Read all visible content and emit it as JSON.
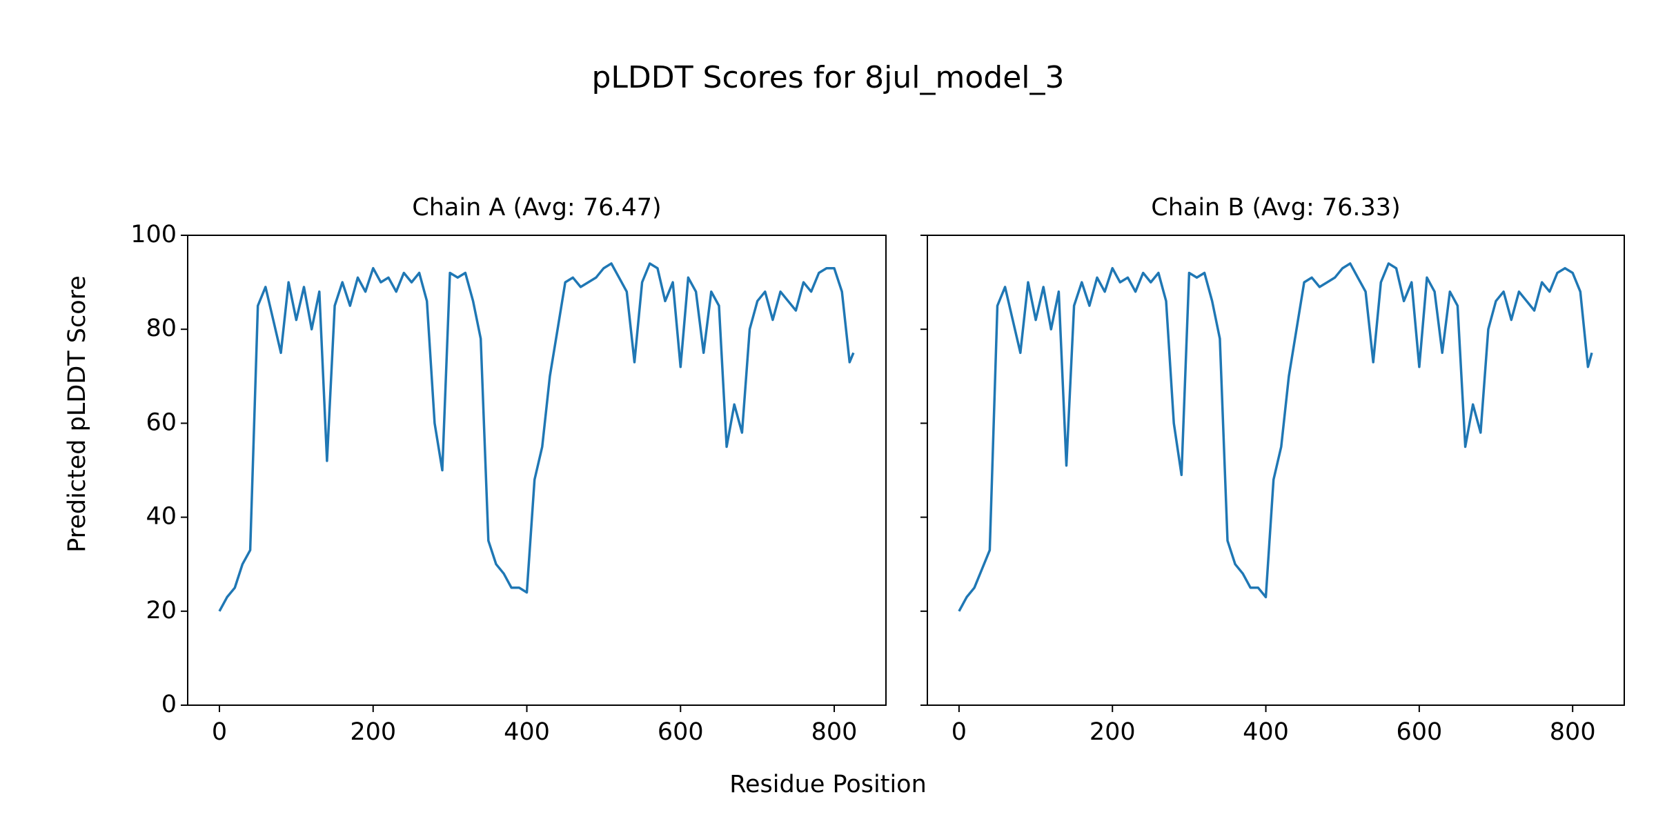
{
  "figure": {
    "title": "pLDDT Scores for 8jul_model_3",
    "x_label": "Residue Position",
    "y_label": "Predicted pLDDT Score"
  },
  "chart_data": [
    {
      "type": "line",
      "title": "Chain A (Avg: 76.47)",
      "color": "#1f77b4",
      "x": [
        0,
        10,
        20,
        30,
        40,
        50,
        60,
        70,
        80,
        90,
        100,
        110,
        120,
        130,
        140,
        150,
        160,
        170,
        180,
        190,
        200,
        210,
        220,
        230,
        240,
        250,
        260,
        270,
        280,
        290,
        300,
        310,
        320,
        330,
        340,
        350,
        360,
        370,
        380,
        390,
        400,
        410,
        420,
        430,
        440,
        450,
        460,
        470,
        480,
        490,
        500,
        510,
        520,
        530,
        540,
        550,
        560,
        570,
        580,
        590,
        600,
        610,
        620,
        630,
        640,
        650,
        660,
        670,
        680,
        690,
        700,
        710,
        720,
        730,
        740,
        750,
        760,
        770,
        780,
        790,
        800,
        810,
        820,
        825
      ],
      "values": [
        20,
        23,
        25,
        30,
        33,
        85,
        89,
        82,
        75,
        90,
        82,
        89,
        80,
        88,
        52,
        85,
        90,
        85,
        91,
        88,
        93,
        90,
        91,
        88,
        92,
        90,
        92,
        86,
        60,
        50,
        92,
        91,
        92,
        86,
        78,
        35,
        30,
        28,
        25,
        25,
        24,
        48,
        55,
        70,
        80,
        90,
        91,
        89,
        90,
        91,
        93,
        94,
        91,
        88,
        73,
        90,
        94,
        93,
        86,
        90,
        72,
        91,
        88,
        75,
        88,
        85,
        55,
        64,
        58,
        80,
        86,
        88,
        82,
        88,
        86,
        84,
        90,
        88,
        92,
        93,
        93,
        88,
        73,
        75
      ],
      "xlim": [
        -41.3,
        867.3
      ],
      "ylim": [
        0,
        100
      ],
      "xticks": [
        0,
        200,
        400,
        600,
        800
      ],
      "yticks": [
        0,
        20,
        40,
        60,
        80,
        100
      ],
      "show_ytick_labels": true
    },
    {
      "type": "line",
      "title": "Chain B (Avg: 76.33)",
      "color": "#1f77b4",
      "x": [
        0,
        10,
        20,
        30,
        40,
        50,
        60,
        70,
        80,
        90,
        100,
        110,
        120,
        130,
        140,
        150,
        160,
        170,
        180,
        190,
        200,
        210,
        220,
        230,
        240,
        250,
        260,
        270,
        280,
        290,
        300,
        310,
        320,
        330,
        340,
        350,
        360,
        370,
        380,
        390,
        400,
        410,
        420,
        430,
        440,
        450,
        460,
        470,
        480,
        490,
        500,
        510,
        520,
        530,
        540,
        550,
        560,
        570,
        580,
        590,
        600,
        610,
        620,
        630,
        640,
        650,
        660,
        670,
        680,
        690,
        700,
        710,
        720,
        730,
        740,
        750,
        760,
        770,
        780,
        790,
        800,
        810,
        820,
        825
      ],
      "values": [
        20,
        23,
        25,
        29,
        33,
        85,
        89,
        82,
        75,
        90,
        82,
        89,
        80,
        88,
        51,
        85,
        90,
        85,
        91,
        88,
        93,
        90,
        91,
        88,
        92,
        90,
        92,
        86,
        60,
        49,
        92,
        91,
        92,
        86,
        78,
        35,
        30,
        28,
        25,
        25,
        23,
        48,
        55,
        70,
        80,
        90,
        91,
        89,
        90,
        91,
        93,
        94,
        91,
        88,
        73,
        90,
        94,
        93,
        86,
        90,
        72,
        91,
        88,
        75,
        88,
        85,
        55,
        64,
        58,
        80,
        86,
        88,
        82,
        88,
        86,
        84,
        90,
        88,
        92,
        93,
        92,
        88,
        72,
        75
      ],
      "xlim": [
        -41.3,
        867.3
      ],
      "ylim": [
        0,
        100
      ],
      "xticks": [
        0,
        200,
        400,
        600,
        800
      ],
      "yticks": [
        0,
        20,
        40,
        60,
        80,
        100
      ],
      "show_ytick_labels": false
    }
  ]
}
